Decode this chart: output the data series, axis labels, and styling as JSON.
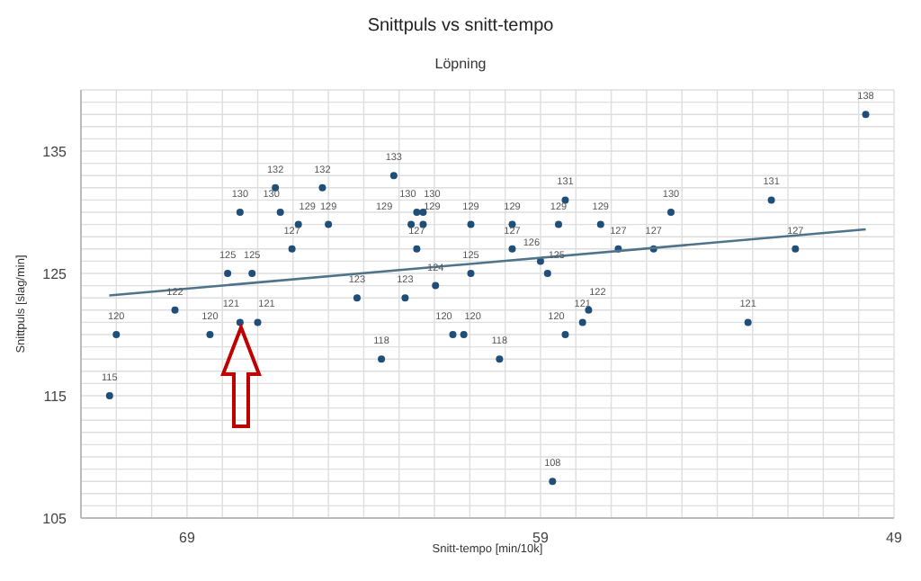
{
  "chart_data": {
    "type": "scatter",
    "title": "Snittpuls vs snitt-tempo",
    "subtitle": "Löpning",
    "xlabel": "Snitt-tempo [min/10k]",
    "ylabel": "Snittpuls [slag/min]",
    "x": [
      71.19,
      71.0,
      69.34,
      68.35,
      67.85,
      67.5,
      67.5,
      67.16,
      67.0,
      66.5,
      66.36,
      66.03,
      65.85,
      65.17,
      65.0,
      64.19,
      63.5,
      63.15,
      62.83,
      62.66,
      62.5,
      62.5,
      62.32,
      62.32,
      61.97,
      61.48,
      61.17,
      60.97,
      60.97,
      60.16,
      59.8,
      59.8,
      59.0,
      58.8,
      58.66,
      58.49,
      58.3,
      58.3,
      57.81,
      57.64,
      57.3,
      56.8,
      55.8,
      55.31,
      53.13,
      52.47,
      51.79,
      49.8
    ],
    "series": [
      {
        "color": "#1f4e79",
        "data_labels": true,
        "values": [
          115,
          120,
          122,
          120,
          125,
          130,
          121,
          125,
          121,
          132,
          130,
          127,
          129,
          132,
          129,
          123,
          118,
          133,
          123,
          129,
          130,
          127,
          130,
          129,
          124,
          120,
          120,
          129,
          125,
          118,
          129,
          127,
          126,
          125,
          108,
          129,
          131,
          120,
          121,
          122,
          129,
          127,
          127,
          130,
          121,
          131,
          127,
          138
        ]
      },
      {
        "type": "line",
        "color": "#4f7389",
        "marker": "none",
        "x": [
          71.2,
          49.8
        ],
        "values": [
          123.2,
          128.6
        ]
      }
    ],
    "marker": "circle",
    "grid": true,
    "legend": false,
    "xlim": [
      72,
      49
    ],
    "ylim": [
      105,
      140
    ],
    "xticks": [
      {
        "value": 72,
        "label": null
      },
      {
        "value": 71,
        "label": null
      },
      {
        "value": 70,
        "label": null
      },
      69,
      {
        "value": 68,
        "label": null
      },
      {
        "value": 67,
        "label": null
      },
      {
        "value": 66,
        "label": null
      },
      {
        "value": 65,
        "label": null
      },
      {
        "value": 64,
        "label": null
      },
      {
        "value": 63,
        "label": null
      },
      {
        "value": 62,
        "label": null
      },
      {
        "value": 61,
        "label": null
      },
      {
        "value": 60,
        "label": null
      },
      59,
      {
        "value": 58,
        "label": null
      },
      {
        "value": 57,
        "label": null
      },
      {
        "value": 56,
        "label": null
      },
      {
        "value": 55,
        "label": null
      },
      {
        "value": 54,
        "label": null
      },
      {
        "value": 53,
        "label": null
      },
      {
        "value": 52,
        "label": null
      },
      {
        "value": 51,
        "label": null
      },
      {
        "value": 50,
        "label": null
      },
      49
    ],
    "yticks": [
      105,
      {
        "value": 106,
        "label": null
      },
      {
        "value": 107,
        "label": null
      },
      {
        "value": 108,
        "label": null
      },
      {
        "value": 109,
        "label": null
      },
      {
        "value": 110,
        "label": null
      },
      {
        "value": 111,
        "label": null
      },
      {
        "value": 112,
        "label": null
      },
      {
        "value": 113,
        "label": null
      },
      {
        "value": 114,
        "label": null
      },
      115,
      {
        "value": 116,
        "label": null
      },
      {
        "value": 117,
        "label": null
      },
      {
        "value": 118,
        "label": null
      },
      {
        "value": 119,
        "label": null
      },
      {
        "value": 120,
        "label": null
      },
      {
        "value": 121,
        "label": null
      },
      {
        "value": 122,
        "label": null
      },
      {
        "value": 123,
        "label": null
      },
      {
        "value": 124,
        "label": null
      },
      125,
      {
        "value": 126,
        "label": null
      },
      {
        "value": 127,
        "label": null
      },
      {
        "value": 128,
        "label": null
      },
      {
        "value": 129,
        "label": null
      },
      {
        "value": 130,
        "label": null
      },
      {
        "value": 131,
        "label": null
      },
      {
        "value": 132,
        "label": null
      },
      {
        "value": 133,
        "label": null
      },
      {
        "value": 134,
        "label": null
      },
      135,
      {
        "value": 136,
        "label": null
      },
      {
        "value": 137,
        "label": null
      },
      {
        "value": 138,
        "label": null
      },
      {
        "value": 139,
        "label": null
      },
      {
        "value": 140,
        "label": null
      }
    ]
  }
}
